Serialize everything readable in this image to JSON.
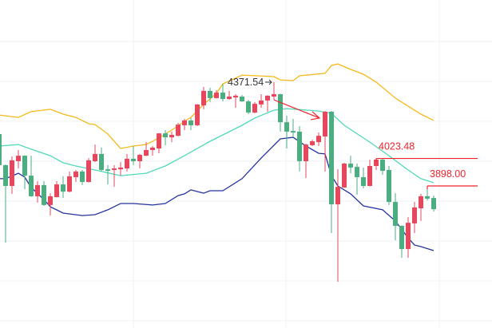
{
  "chart_data": {
    "type": "candlestick",
    "title": "",
    "xlabel": "",
    "ylabel": "",
    "ylim": [
      3249.6,
      4746.8
    ],
    "grid": true,
    "colors": {
      "up": "#e5485c",
      "down": "#4cae80",
      "upper_band": "#f7b81c",
      "middle_band": "#4fd9b9",
      "lower_band": "#2433a0",
      "annotation": "#f0232e",
      "label_text": "#333333",
      "grid": "#eef1f4"
    },
    "candles_ohlc": [
      [
        4135,
        4164,
        3982,
        3993
      ],
      [
        3993,
        3996,
        3639,
        3898
      ],
      [
        3898,
        4033,
        3862,
        4015
      ],
      [
        4011,
        4062,
        3978,
        4036
      ],
      [
        4036,
        4038,
        3883,
        3945
      ],
      [
        3945,
        4036,
        3848,
        3851
      ],
      [
        3851,
        3920,
        3822,
        3902
      ],
      [
        3902,
        3920,
        3807,
        3811
      ],
      [
        3811,
        3865,
        3763,
        3851
      ],
      [
        3847,
        3920,
        3845,
        3905
      ],
      [
        3905,
        3942,
        3843,
        3872
      ],
      [
        3872,
        3964,
        3869,
        3942
      ],
      [
        3938,
        3971,
        3916,
        3964
      ],
      [
        3964,
        3971,
        3902,
        3916
      ],
      [
        3916,
        4025,
        3914,
        4015
      ],
      [
        4011,
        4087,
        4007,
        4044
      ],
      [
        4044,
        4073,
        3964,
        3971
      ],
      [
        3974,
        3993,
        3905,
        3967
      ],
      [
        3971,
        3993,
        3894,
        3978
      ],
      [
        3974,
        4007,
        3945,
        3982
      ],
      [
        3978,
        4044,
        3964,
        4022
      ],
      [
        4022,
        4080,
        3993,
        4011
      ],
      [
        4011,
        4044,
        3978,
        4040
      ],
      [
        4036,
        4098,
        4034,
        4062
      ],
      [
        4062,
        4080,
        4036,
        4073
      ],
      [
        4069,
        4140,
        4047,
        4138
      ],
      [
        4138,
        4153,
        4084,
        4120
      ],
      [
        4120,
        4146,
        4098,
        4131
      ],
      [
        4127,
        4186,
        4125,
        4178
      ],
      [
        4175,
        4204,
        4153,
        4197
      ],
      [
        4197,
        4208,
        4153,
        4175
      ],
      [
        4175,
        4272,
        4171,
        4270
      ],
      [
        4266,
        4350,
        4248,
        4332
      ],
      [
        4332,
        4346,
        4281,
        4299
      ],
      [
        4299,
        4335,
        4297,
        4324
      ],
      [
        4324,
        4364,
        4284,
        4295
      ],
      [
        4295,
        4332,
        4291,
        4306
      ],
      [
        4302,
        4317,
        4255,
        4310
      ],
      [
        4306,
        4313,
        4282,
        4284
      ],
      [
        4284,
        4291,
        4226,
        4233
      ],
      [
        4233,
        4281,
        4229,
        4273
      ],
      [
        4270,
        4317,
        4255,
        4288
      ],
      [
        4288,
        4312,
        4237,
        4310
      ],
      [
        4306,
        4371.54,
        4291,
        4317
      ],
      [
        4317,
        4319,
        4146,
        4189
      ],
      [
        4189,
        4219,
        4069,
        4146
      ],
      [
        4149,
        4204,
        4120,
        4142
      ],
      [
        4146,
        4171,
        3964,
        4011
      ],
      [
        4011,
        4091,
        3934,
        4087
      ],
      [
        4084,
        4109,
        4080,
        4102
      ],
      [
        4098,
        4142,
        4080,
        4127
      ],
      [
        4124,
        4240,
        3964,
        4237
      ],
      [
        4237,
        4240,
        3683,
        3814
      ],
      [
        3814,
        3974,
        3461,
        3894
      ],
      [
        3891,
        4004,
        3889,
        4000
      ],
      [
        4000,
        4036,
        3956,
        3982
      ],
      [
        3985,
        4000,
        3858,
        3938
      ],
      [
        3938,
        3982,
        3887,
        3898
      ],
      [
        3898,
        4018,
        3896,
        3989
      ],
      [
        3989,
        4023.48,
        3971,
        4018
      ],
      [
        4018,
        4023,
        3949,
        3967
      ],
      [
        3971,
        3989,
        3811,
        3825
      ],
      [
        3825,
        3865,
        3650,
        3716
      ],
      [
        3716,
        3718,
        3570,
        3610
      ],
      [
        3610,
        3756,
        3570,
        3730
      ],
      [
        3727,
        3825,
        3683,
        3800
      ],
      [
        3796,
        3862,
        3738,
        3851
      ],
      [
        3851,
        3898,
        3832,
        3840
      ],
      [
        3843,
        3854,
        3781,
        3792
      ]
    ],
    "bands": {
      "upper": [
        [
          1,
          4222
        ],
        [
          4,
          4211
        ],
        [
          6,
          4237
        ],
        [
          9,
          4248
        ],
        [
          11,
          4226
        ],
        [
          13,
          4211
        ],
        [
          15,
          4182
        ],
        [
          16,
          4178
        ],
        [
          18,
          4135
        ],
        [
          20,
          4069
        ],
        [
          22,
          4080
        ],
        [
          24,
          4087
        ],
        [
          26,
          4117
        ],
        [
          28,
          4153
        ],
        [
          30,
          4193
        ],
        [
          31,
          4211
        ],
        [
          33,
          4270
        ],
        [
          35,
          4321
        ],
        [
          36,
          4364
        ],
        [
          39,
          4404
        ],
        [
          41,
          4401
        ],
        [
          44,
          4397
        ],
        [
          45,
          4382
        ],
        [
          47,
          4379
        ],
        [
          48,
          4401
        ],
        [
          52,
          4412
        ],
        [
          53,
          4448
        ],
        [
          54,
          4455
        ],
        [
          56,
          4430
        ],
        [
          58,
          4408
        ],
        [
          60,
          4372
        ],
        [
          63,
          4299
        ],
        [
          65,
          4262
        ],
        [
          67,
          4226
        ],
        [
          69,
          4197
        ]
      ],
      "middle": [
        [
          1,
          4080
        ],
        [
          4,
          4087
        ],
        [
          6,
          4066
        ],
        [
          9,
          4036
        ],
        [
          11,
          4004
        ],
        [
          13,
          3989
        ],
        [
          16,
          3971
        ],
        [
          20,
          3945
        ],
        [
          24,
          3956
        ],
        [
          27,
          3989
        ],
        [
          30,
          4036
        ],
        [
          34,
          4102
        ],
        [
          39,
          4175
        ],
        [
          41,
          4208
        ],
        [
          44,
          4244
        ],
        [
          46,
          4251
        ],
        [
          51,
          4240
        ],
        [
          53,
          4229
        ],
        [
          55,
          4175
        ],
        [
          59,
          4098
        ],
        [
          62,
          4036
        ],
        [
          65,
          3971
        ],
        [
          67,
          3931
        ],
        [
          69,
          3913
        ]
      ],
      "lower": [
        [
          1,
          3931
        ],
        [
          2,
          3931
        ],
        [
          4,
          3956
        ],
        [
          5,
          3938
        ],
        [
          6,
          3891
        ],
        [
          8,
          3836
        ],
        [
          9,
          3803
        ],
        [
          11,
          3774
        ],
        [
          14,
          3763
        ],
        [
          16,
          3767
        ],
        [
          18,
          3789
        ],
        [
          20,
          3818
        ],
        [
          22,
          3818
        ],
        [
          25,
          3811
        ],
        [
          27,
          3818
        ],
        [
          29,
          3854
        ],
        [
          30,
          3862
        ],
        [
          31,
          3880
        ],
        [
          33,
          3865
        ],
        [
          34,
          3876
        ],
        [
          36,
          3876
        ],
        [
          39,
          3931
        ],
        [
          42,
          4025
        ],
        [
          45,
          4113
        ],
        [
          47,
          4120
        ],
        [
          49,
          4080
        ],
        [
          51,
          4047
        ],
        [
          52,
          4044
        ],
        [
          53,
          3945
        ],
        [
          54,
          3898
        ],
        [
          56,
          3862
        ],
        [
          58,
          3807
        ],
        [
          61,
          3789
        ],
        [
          63,
          3738
        ],
        [
          65,
          3661
        ],
        [
          66,
          3628
        ],
        [
          67,
          3621
        ],
        [
          69,
          3603
        ]
      ]
    },
    "annotations": {
      "high_label": "4371.54",
      "high_candle": 44,
      "high_value": 4371.54,
      "resistance_1_label": "4023.48",
      "resistance_1_value": 4023.48,
      "resistance_1_from_candle": 60,
      "resistance_2_label": "3898.00",
      "resistance_2_value": 3898.0,
      "resistance_2_from_candle": 68,
      "trend_arrow_from": [
        44,
        4291
      ],
      "trend_arrow_to": [
        51,
        4208
      ]
    }
  }
}
